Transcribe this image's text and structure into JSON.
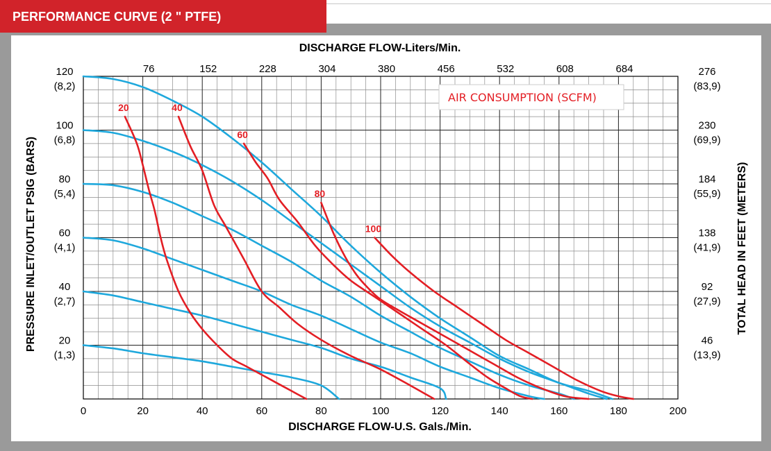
{
  "header": {
    "title": "PERFORMANCE CURVE (2 \" PTFE)"
  },
  "colors": {
    "header_bg": "#d1232a",
    "frame": "#9a9a9a",
    "grid": "#555555",
    "air": "#e31e24",
    "pressure": "#1ea8dc"
  },
  "chart_data": {
    "type": "line",
    "title": "",
    "xlabel": "DISCHARGE FLOW-U.S. Gals./Min.",
    "x2label": "DISCHARGE FLOW-Liters/Min.",
    "ylabel": "PRESSURE INLET/OUTLET PSIG (BARS)",
    "y2label": "TOTAL HEAD IN FEET (METERS)",
    "xlim": [
      0,
      200
    ],
    "ylim": [
      0,
      120
    ],
    "grid": true,
    "x_ticks": [
      "0",
      "20",
      "40",
      "60",
      "80",
      "100",
      "120",
      "140",
      "160",
      "180",
      "200"
    ],
    "x2_ticks": [
      "76",
      "152",
      "228",
      "304",
      "380",
      "456",
      "532",
      "608",
      "684"
    ],
    "y_ticks": [
      {
        "psi": "120",
        "bar": "(8,2)"
      },
      {
        "psi": "100",
        "bar": "(6,8)"
      },
      {
        "psi": "80",
        "bar": "(5,4)"
      },
      {
        "psi": "60",
        "bar": "(4,1)"
      },
      {
        "psi": "40",
        "bar": "(2,7)"
      },
      {
        "psi": "20",
        "bar": "(1,3)"
      }
    ],
    "y2_ticks": [
      {
        "ft": "276",
        "m": "(83,9)"
      },
      {
        "ft": "230",
        "m": "(69,9)"
      },
      {
        "ft": "184",
        "m": "(55,9)"
      },
      {
        "ft": "138",
        "m": "(41,9)"
      },
      {
        "ft": "92",
        "m": "(27,9)"
      },
      {
        "ft": "46",
        "m": "(13,9)"
      }
    ],
    "legend_label": "AIR CONSUMPTION (SCFM)",
    "pressure_series": [
      {
        "points": [
          [
            0,
            120
          ],
          [
            10,
            119
          ],
          [
            20,
            116
          ],
          [
            30,
            111
          ],
          [
            40,
            105
          ],
          [
            50,
            97
          ],
          [
            60,
            88
          ],
          [
            70,
            78
          ],
          [
            80,
            68
          ],
          [
            90,
            57
          ],
          [
            100,
            47
          ],
          [
            110,
            38
          ],
          [
            120,
            30
          ],
          [
            130,
            23
          ],
          [
            140,
            16
          ],
          [
            150,
            11
          ],
          [
            160,
            6
          ],
          [
            170,
            3
          ],
          [
            178,
            0
          ]
        ]
      },
      {
        "points": [
          [
            0,
            100
          ],
          [
            10,
            99
          ],
          [
            20,
            96
          ],
          [
            30,
            92
          ],
          [
            40,
            87
          ],
          [
            50,
            81
          ],
          [
            60,
            74
          ],
          [
            70,
            66
          ],
          [
            80,
            58
          ],
          [
            90,
            50
          ],
          [
            100,
            42
          ],
          [
            110,
            34
          ],
          [
            120,
            27
          ],
          [
            130,
            21
          ],
          [
            140,
            15
          ],
          [
            150,
            10
          ],
          [
            160,
            6
          ],
          [
            170,
            2
          ],
          [
            176,
            0
          ]
        ]
      },
      {
        "points": [
          [
            0,
            80
          ],
          [
            10,
            79.5
          ],
          [
            20,
            77
          ],
          [
            30,
            73
          ],
          [
            40,
            68
          ],
          [
            50,
            63
          ],
          [
            60,
            57
          ],
          [
            70,
            51
          ],
          [
            80,
            44
          ],
          [
            90,
            38
          ],
          [
            100,
            31
          ],
          [
            110,
            25
          ],
          [
            120,
            19
          ],
          [
            130,
            14
          ],
          [
            140,
            9
          ],
          [
            150,
            5
          ],
          [
            160,
            2
          ],
          [
            165,
            0
          ]
        ]
      },
      {
        "points": [
          [
            0,
            60
          ],
          [
            10,
            59
          ],
          [
            20,
            56
          ],
          [
            30,
            52
          ],
          [
            40,
            48
          ],
          [
            50,
            44
          ],
          [
            60,
            40
          ],
          [
            70,
            35
          ],
          [
            80,
            31
          ],
          [
            90,
            26
          ],
          [
            100,
            21
          ],
          [
            110,
            17
          ],
          [
            120,
            12
          ],
          [
            130,
            8
          ],
          [
            140,
            4
          ],
          [
            150,
            1
          ],
          [
            155,
            0
          ]
        ]
      },
      {
        "points": [
          [
            0,
            40
          ],
          [
            10,
            38.5
          ],
          [
            20,
            36
          ],
          [
            30,
            33.5
          ],
          [
            40,
            31
          ],
          [
            50,
            28
          ],
          [
            60,
            25
          ],
          [
            70,
            22
          ],
          [
            80,
            19
          ],
          [
            90,
            15
          ],
          [
            100,
            12
          ],
          [
            110,
            8
          ],
          [
            120,
            4
          ],
          [
            122,
            0
          ]
        ]
      },
      {
        "points": [
          [
            0,
            20
          ],
          [
            10,
            18.8
          ],
          [
            20,
            17
          ],
          [
            30,
            15.5
          ],
          [
            40,
            14
          ],
          [
            50,
            12
          ],
          [
            60,
            10
          ],
          [
            70,
            8
          ],
          [
            80,
            5
          ],
          [
            86,
            0
          ]
        ]
      }
    ],
    "air_series": [
      {
        "name": "20",
        "points": [
          [
            14,
            105
          ],
          [
            18,
            95
          ],
          [
            20,
            87
          ],
          [
            22,
            78
          ],
          [
            24,
            70
          ],
          [
            26,
            60
          ],
          [
            28,
            52
          ],
          [
            32,
            40
          ],
          [
            36,
            32
          ],
          [
            40,
            26
          ],
          [
            45,
            20
          ],
          [
            50,
            15
          ],
          [
            55,
            12
          ],
          [
            60,
            9
          ],
          [
            65,
            6
          ],
          [
            70,
            3
          ],
          [
            75,
            0
          ]
        ]
      },
      {
        "name": "40",
        "points": [
          [
            32,
            105
          ],
          [
            36,
            94
          ],
          [
            40,
            85
          ],
          [
            44,
            72
          ],
          [
            48,
            64
          ],
          [
            54,
            52
          ],
          [
            60,
            40
          ],
          [
            66,
            34
          ],
          [
            72,
            28
          ],
          [
            80,
            22
          ],
          [
            90,
            16
          ],
          [
            100,
            11
          ],
          [
            110,
            5
          ],
          [
            118,
            0
          ]
        ]
      },
      {
        "name": "60",
        "points": [
          [
            54,
            95
          ],
          [
            58,
            88
          ],
          [
            62,
            82
          ],
          [
            66,
            74
          ],
          [
            72,
            66
          ],
          [
            78,
            57
          ],
          [
            84,
            50
          ],
          [
            90,
            44
          ],
          [
            98,
            38
          ],
          [
            106,
            32
          ],
          [
            114,
            26
          ],
          [
            122,
            20
          ],
          [
            130,
            13
          ],
          [
            136,
            8
          ],
          [
            142,
            4
          ],
          [
            147,
            1
          ],
          [
            151,
            0
          ]
        ]
      },
      {
        "name": "80",
        "points": [
          [
            80,
            73
          ],
          [
            84,
            62
          ],
          [
            88,
            53
          ],
          [
            92,
            46
          ],
          [
            96,
            41
          ],
          [
            100,
            37
          ],
          [
            106,
            33
          ],
          [
            114,
            28
          ],
          [
            122,
            23
          ],
          [
            130,
            18
          ],
          [
            138,
            13
          ],
          [
            146,
            8
          ],
          [
            154,
            4
          ],
          [
            162,
            1
          ],
          [
            170,
            0
          ]
        ]
      },
      {
        "name": "100",
        "points": [
          [
            98,
            60
          ],
          [
            104,
            53
          ],
          [
            110,
            47
          ],
          [
            118,
            40
          ],
          [
            126,
            34
          ],
          [
            134,
            28
          ],
          [
            142,
            22
          ],
          [
            150,
            17
          ],
          [
            158,
            12
          ],
          [
            166,
            7
          ],
          [
            174,
            3
          ],
          [
            180,
            1
          ],
          [
            185,
            0
          ]
        ]
      }
    ]
  }
}
